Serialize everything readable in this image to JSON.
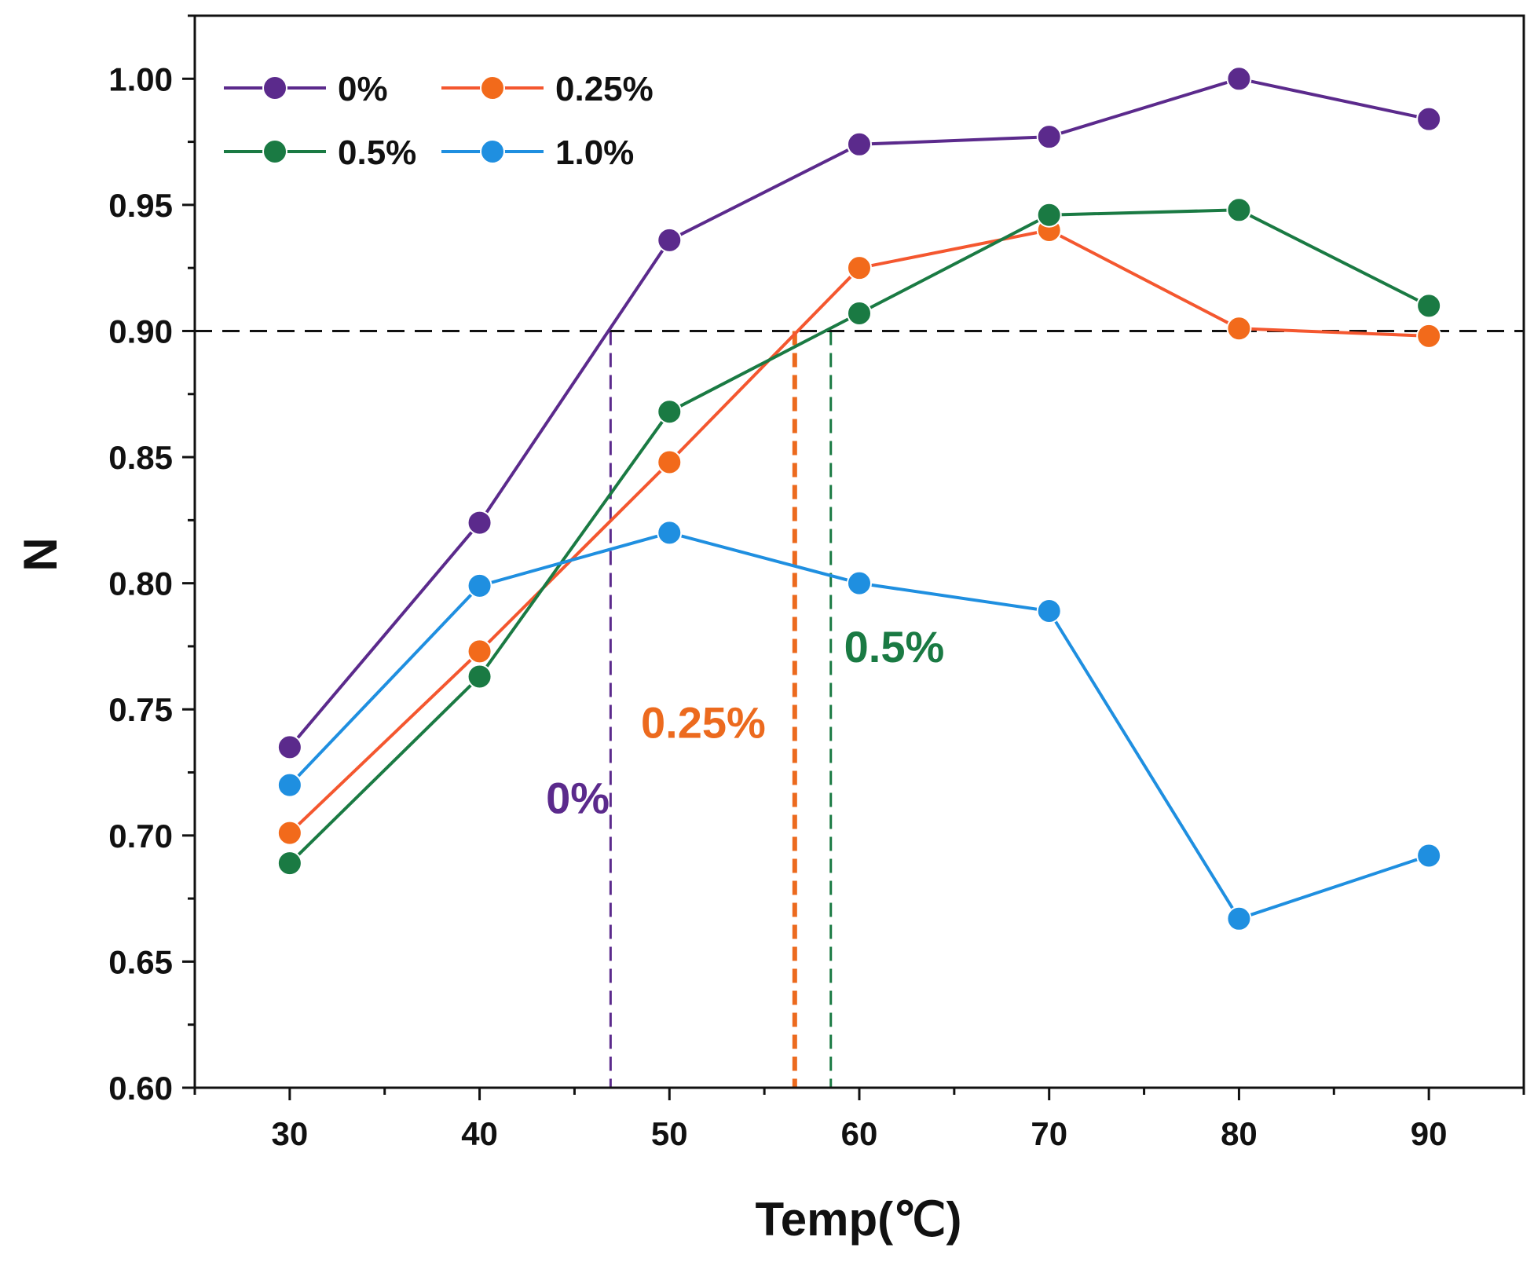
{
  "chart_data": {
    "type": "line",
    "title": "",
    "xlabel": "Temp(℃)",
    "ylabel": "N",
    "x": [
      30,
      40,
      50,
      60,
      70,
      80,
      90
    ],
    "xlim": [
      25,
      95
    ],
    "ylim": [
      0.6,
      1.025
    ],
    "xticks": [
      30,
      40,
      50,
      60,
      70,
      80,
      90
    ],
    "xtick_labels": [
      "30",
      "40",
      "50",
      "60",
      "70",
      "80",
      "90"
    ],
    "yticks": [
      0.6,
      0.65,
      0.7,
      0.75,
      0.8,
      0.85,
      0.9,
      0.95,
      1.0
    ],
    "ytick_labels": [
      "0.60",
      "0.65",
      "0.70",
      "0.75",
      "0.80",
      "0.85",
      "0.90",
      "0.95",
      "1.00"
    ],
    "grid": false,
    "legend_position": "top-left",
    "series": [
      {
        "name": "0%",
        "color": "#5b2a8c",
        "values": [
          0.735,
          0.824,
          0.936,
          0.974,
          0.977,
          1.0,
          0.984
        ]
      },
      {
        "name": "0.25%",
        "color": "#f4572f",
        "marker_color": "#f26a1b",
        "values": [
          0.701,
          0.773,
          0.848,
          0.925,
          0.94,
          0.901,
          0.898
        ]
      },
      {
        "name": "0.5%",
        "color": "#1a7a43",
        "values": [
          0.689,
          0.763,
          0.868,
          0.907,
          0.946,
          0.948,
          0.91
        ]
      },
      {
        "name": "1.0%",
        "color": "#1f8fe0",
        "values": [
          0.72,
          0.799,
          0.82,
          0.8,
          0.789,
          0.667,
          0.692
        ]
      }
    ],
    "reference_line": {
      "y": 0.9,
      "color": "#111111",
      "style": "dashed"
    },
    "annotations": [
      {
        "text": "0%",
        "x_marker": 46.9,
        "label_x": 43.5,
        "label_y": 0.715,
        "color": "#5b2a8c"
      },
      {
        "text": "0.25%",
        "x_marker": 56.6,
        "label_x": 48.5,
        "label_y": 0.745,
        "color": "#ec6a1e"
      },
      {
        "text": "0.5%",
        "x_marker": 58.5,
        "label_x": 59.2,
        "label_y": 0.775,
        "color": "#1a7a43"
      }
    ]
  }
}
